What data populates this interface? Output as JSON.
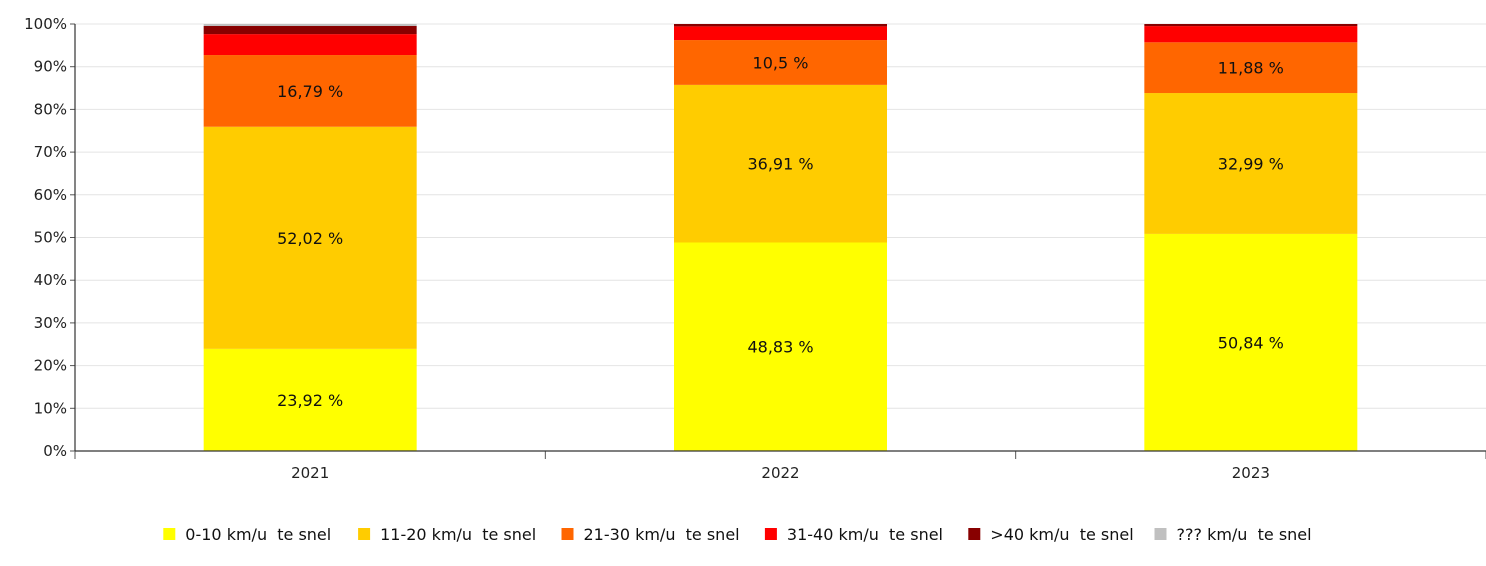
{
  "chart_data": {
    "type": "bar",
    "stacked": true,
    "categories": [
      "2021",
      "2022",
      "2023"
    ],
    "series": [
      {
        "name": "0-10 km/u  te snel",
        "color": "#ffff00",
        "values": [
          23.92,
          48.83,
          50.84
        ],
        "labels": [
          "23,92 %",
          "48,83 %",
          "50,84 %"
        ]
      },
      {
        "name": "11-20 km/u  te snel",
        "color": "#ffcc00",
        "values": [
          52.02,
          36.91,
          32.99
        ],
        "labels": [
          "52,02 %",
          "36,91 %",
          "32,99 %"
        ]
      },
      {
        "name": "21-30 km/u  te snel",
        "color": "#ff6600",
        "values": [
          16.79,
          10.5,
          11.88
        ],
        "labels": [
          "16,79 %",
          "10,5 %",
          "11,88 %"
        ]
      },
      {
        "name": "31-40 km/u  te snel",
        "color": "#ff0000",
        "values": [
          4.9,
          3.2,
          3.8
        ],
        "labels": [
          "",
          "",
          ""
        ]
      },
      {
        "name": ">40 km/u  te snel",
        "color": "#880000",
        "values": [
          1.9,
          0.56,
          0.49
        ],
        "labels": [
          "",
          "",
          ""
        ]
      },
      {
        "name": "??? km/u  te snel",
        "color": "#c0c0c0",
        "values": [
          0.47,
          0,
          0
        ],
        "labels": [
          "",
          "",
          ""
        ]
      }
    ],
    "ylim": [
      0,
      100
    ],
    "yticks": [
      0,
      10,
      20,
      30,
      40,
      50,
      60,
      70,
      80,
      90,
      100
    ],
    "ytick_labels": [
      "0%",
      "10%",
      "20%",
      "30%",
      "40%",
      "50%",
      "60%",
      "70%",
      "80%",
      "90%",
      "100%"
    ],
    "grid": true,
    "legend_position": "bottom",
    "title": "",
    "xlabel": "",
    "ylabel": ""
  }
}
